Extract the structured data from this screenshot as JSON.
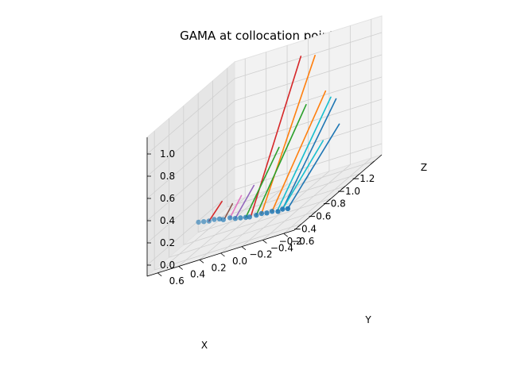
{
  "chart_data": {
    "type": "3d-line-scatter",
    "title": "GAMA at collocation points",
    "xlabel": "X",
    "ylabel": "Y",
    "zlabel": "Z",
    "xlim": [
      -1.3,
      -0.1
    ],
    "ylim": [
      -0.7,
      0.7
    ],
    "zlim": [
      -0.1,
      1.15
    ],
    "x_ticks": [
      "−1.2",
      "−1.0",
      "−0.8",
      "−0.6",
      "−0.4",
      "−0.2"
    ],
    "y_ticks": [
      "−0.6",
      "−0.4",
      "−0.2",
      "0.0",
      "0.2",
      "0.4",
      "0.6"
    ],
    "z_ticks": [
      "0.0",
      "0.2",
      "0.4",
      "0.6",
      "0.8",
      "1.0"
    ],
    "grid": true,
    "segments": [
      {
        "color": "#1f77b4",
        "from": [
          -1.25,
          -0.3,
          0.55
        ],
        "to": [
          -0.3,
          -0.45,
          0.05
        ]
      },
      {
        "color": "#17becf",
        "from": [
          -1.25,
          -0.25,
          0.58
        ],
        "to": [
          -0.3,
          -0.4,
          0.05
        ]
      },
      {
        "color": "#ff7f0e",
        "from": [
          -1.25,
          -0.2,
          0.65
        ],
        "to": [
          -0.3,
          -0.35,
          0.06
        ]
      },
      {
        "color": "#ff7f0e",
        "from": [
          -1.25,
          -0.1,
          1.0
        ],
        "to": [
          -0.3,
          -0.25,
          0.07
        ]
      },
      {
        "color": "#2ca02c",
        "from": [
          -1.2,
          -0.05,
          0.6
        ],
        "to": [
          -0.3,
          -0.2,
          0.07
        ]
      },
      {
        "color": "#d62728",
        "from": [
          -1.2,
          0.0,
          1.05
        ],
        "to": [
          -0.3,
          -0.15,
          0.08
        ]
      },
      {
        "color": "#1f77b4",
        "from": [
          -1.15,
          -0.4,
          0.35
        ],
        "to": [
          -0.3,
          -0.5,
          0.04
        ]
      },
      {
        "color": "#17becf",
        "from": [
          -1.0,
          -0.35,
          0.3
        ],
        "to": [
          -0.3,
          -0.45,
          0.05
        ]
      },
      {
        "color": "#2ca02c",
        "from": [
          -0.9,
          0.0,
          0.4
        ],
        "to": [
          -0.3,
          -0.1,
          0.08
        ]
      },
      {
        "color": "#9467bd",
        "from": [
          -0.7,
          0.1,
          0.2
        ],
        "to": [
          -0.3,
          0.0,
          0.1
        ]
      },
      {
        "color": "#e377c2",
        "from": [
          -0.6,
          0.15,
          0.18
        ],
        "to": [
          -0.3,
          0.05,
          0.12
        ]
      },
      {
        "color": "#8c564b",
        "from": [
          -0.55,
          0.2,
          0.15
        ],
        "to": [
          -0.3,
          0.1,
          0.13
        ]
      },
      {
        "color": "#d62728",
        "from": [
          -0.55,
          0.3,
          0.2
        ],
        "to": [
          -0.3,
          0.25,
          0.15
        ]
      }
    ],
    "points": [
      [
        -0.3,
        -0.5,
        0.04
      ],
      [
        -0.3,
        -0.45,
        0.05
      ],
      [
        -0.28,
        -0.42,
        0.05
      ],
      [
        -0.3,
        -0.35,
        0.06
      ],
      [
        -0.3,
        -0.3,
        0.06
      ],
      [
        -0.3,
        -0.25,
        0.07
      ],
      [
        -0.3,
        -0.2,
        0.07
      ],
      [
        -0.28,
        -0.15,
        0.08
      ],
      [
        -0.3,
        -0.1,
        0.08
      ],
      [
        -0.3,
        -0.05,
        0.09
      ],
      [
        -0.3,
        0.0,
        0.1
      ],
      [
        -0.3,
        0.05,
        0.12
      ],
      [
        -0.28,
        0.1,
        0.13
      ],
      [
        -0.3,
        0.15,
        0.14
      ],
      [
        -0.3,
        0.2,
        0.15
      ],
      [
        -0.3,
        0.25,
        0.15
      ],
      [
        -0.3,
        0.3,
        0.16
      ],
      [
        -0.3,
        0.35,
        0.17
      ]
    ]
  }
}
